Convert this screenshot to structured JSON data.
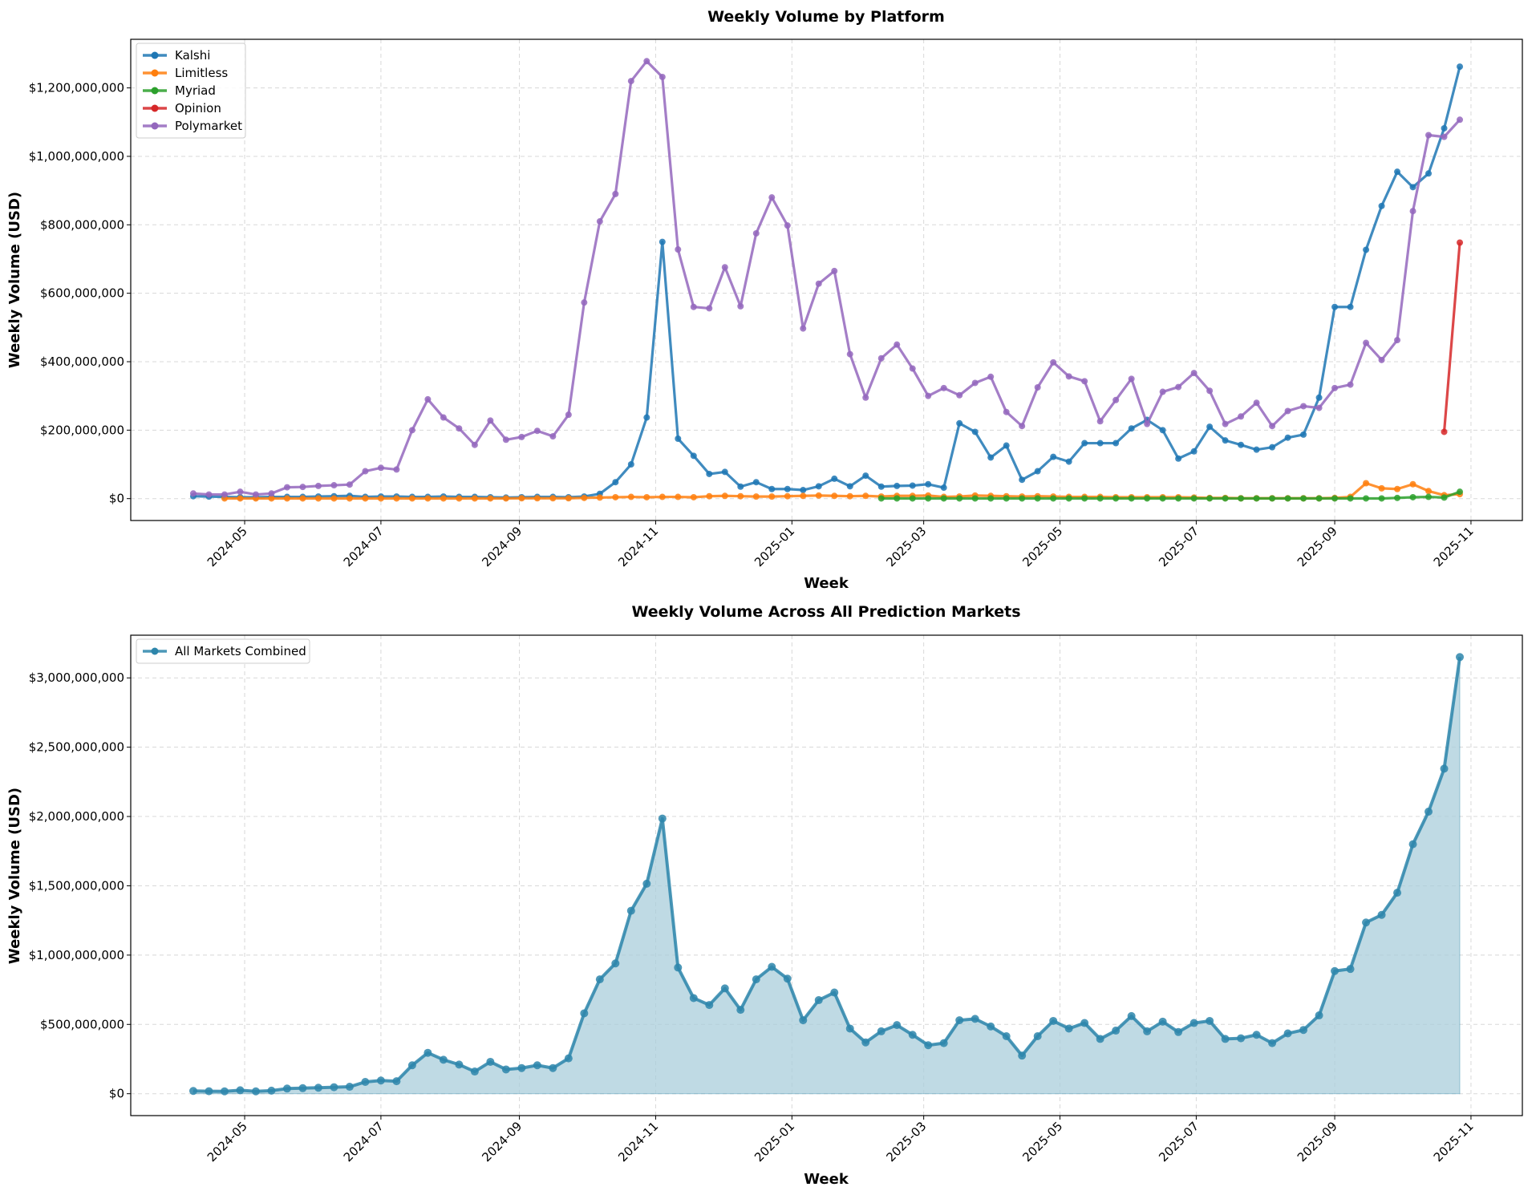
{
  "chart_data": [
    {
      "type": "line",
      "title": "Weekly Volume by Platform",
      "xlabel": "Week",
      "ylabel": "Weekly Volume (USD)",
      "xlim": [
        "2024-03-11",
        "2025-11-24"
      ],
      "ylim": [
        -64000000,
        1342000000
      ],
      "yticks": [
        0,
        200000000,
        400000000,
        600000000,
        800000000,
        1000000000,
        1200000000
      ],
      "ytick_labels": [
        "$0",
        "$200,000,000",
        "$400,000,000",
        "$600,000,000",
        "$800,000,000",
        "$1,000,000,000",
        "$1,200,000,000"
      ],
      "xticks": [
        "2024-05-01",
        "2024-07-01",
        "2024-09-01",
        "2024-11-01",
        "2025-01-01",
        "2025-03-01",
        "2025-05-01",
        "2025-07-01",
        "2025-09-01",
        "2025-11-01"
      ],
      "xtick_labels": [
        "2024-05",
        "2024-07",
        "2024-09",
        "2024-11",
        "2025-01",
        "2025-03",
        "2025-05",
        "2025-07",
        "2025-09",
        "2025-11"
      ],
      "grid": true,
      "legend": "top-left",
      "unit_scale": 1000000,
      "series": [
        {
          "name": "Kalshi",
          "color": "#1f77b4",
          "values": [
            7,
            6,
            5,
            4,
            4,
            5,
            5,
            5,
            6,
            7,
            8,
            5,
            6,
            6,
            5,
            5,
            6,
            5,
            5,
            4,
            3,
            4,
            5,
            5,
            4,
            6,
            14,
            48,
            100,
            237,
            750,
            175,
            125,
            72,
            78,
            35,
            48,
            28,
            28,
            25,
            36,
            58,
            36,
            67,
            35,
            37,
            38,
            42,
            32,
            220,
            195,
            120,
            155,
            55,
            80,
            122,
            108,
            162,
            162,
            162,
            205,
            230,
            200,
            117,
            138,
            210,
            170,
            157,
            143,
            150,
            178,
            187,
            295,
            560,
            560,
            727,
            855,
            955,
            910,
            950,
            1082,
            1262
          ]
        },
        {
          "name": "Limitless",
          "color": "#ff7f0e",
          "values": [
            null,
            null,
            0.5,
            0.5,
            0.5,
            0.5,
            0.5,
            0.5,
            0.5,
            0.5,
            0.5,
            0.5,
            0.5,
            0.5,
            0.5,
            0.5,
            0.5,
            0.5,
            0.5,
            0.5,
            0.5,
            1,
            1,
            1,
            1,
            2,
            3,
            4,
            5,
            4,
            5,
            5,
            4,
            7,
            8,
            7,
            6,
            6,
            7,
            8,
            9,
            8,
            7,
            8,
            6,
            8,
            8,
            9,
            5,
            6,
            9,
            8,
            7,
            6,
            7,
            6,
            5,
            5,
            5,
            4,
            4,
            4,
            4,
            4,
            3,
            2,
            2,
            1,
            1,
            1,
            1,
            1,
            1,
            2,
            5,
            45,
            30,
            28,
            42,
            22,
            10,
            13
          ]
        },
        {
          "name": "Myriad",
          "color": "#2ca02c",
          "values": [
            null,
            null,
            null,
            null,
            null,
            null,
            null,
            null,
            null,
            null,
            null,
            null,
            null,
            null,
            null,
            null,
            null,
            null,
            null,
            null,
            null,
            null,
            null,
            null,
            null,
            null,
            null,
            null,
            null,
            null,
            null,
            null,
            null,
            null,
            null,
            null,
            null,
            null,
            null,
            null,
            null,
            null,
            null,
            null,
            0.5,
            0.5,
            0.5,
            0.5,
            0.5,
            0.5,
            0.5,
            0.5,
            0.5,
            0.5,
            0.5,
            0.5,
            0.5,
            0.5,
            0.5,
            0.5,
            0.5,
            0.5,
            0.5,
            0.5,
            0.5,
            0.5,
            0.5,
            0.5,
            0.5,
            0.5,
            0.5,
            0.5,
            0.5,
            0.5,
            0.5,
            0.5,
            0.5,
            2,
            4,
            5,
            3,
            20
          ]
        },
        {
          "name": "Opinion",
          "color": "#d62728",
          "values": [
            null,
            null,
            null,
            null,
            null,
            null,
            null,
            null,
            null,
            null,
            null,
            null,
            null,
            null,
            null,
            null,
            null,
            null,
            null,
            null,
            null,
            null,
            null,
            null,
            null,
            null,
            null,
            null,
            null,
            null,
            null,
            null,
            null,
            null,
            null,
            null,
            null,
            null,
            null,
            null,
            null,
            null,
            null,
            null,
            null,
            null,
            null,
            null,
            null,
            null,
            null,
            null,
            null,
            null,
            null,
            null,
            null,
            null,
            null,
            null,
            null,
            null,
            null,
            null,
            null,
            null,
            null,
            null,
            null,
            null,
            null,
            null,
            null,
            null,
            null,
            null,
            null,
            null,
            null,
            null,
            195,
            748
          ]
        },
        {
          "name": "Polymarket",
          "color": "#9467bd",
          "values": [
            15,
            12,
            12,
            20,
            12,
            15,
            33,
            34,
            37,
            39,
            41,
            80,
            90,
            85,
            200,
            290,
            237,
            205,
            157,
            228,
            172,
            180,
            198,
            182,
            245,
            573,
            810,
            890,
            1220,
            1278,
            1232,
            728,
            560,
            556,
            676,
            562,
            775,
            880,
            798,
            497,
            628,
            665,
            422,
            295,
            410,
            450,
            380,
            300,
            323,
            302,
            338,
            356,
            253,
            212,
            325,
            398,
            357,
            343,
            226,
            288,
            350,
            218,
            312,
            326,
            367,
            315,
            218,
            240,
            280,
            212,
            256,
            270,
            265,
            323,
            333,
            455,
            405,
            463,
            840,
            1062,
            1057,
            1107
          ]
        }
      ]
    },
    {
      "type": "area",
      "title": "Weekly Volume Across All Prediction Markets",
      "xlabel": "Week",
      "ylabel": "Weekly Volume (USD)",
      "xlim": [
        "2024-03-11",
        "2025-11-24"
      ],
      "ylim": [
        -158000000,
        3308000000
      ],
      "yticks": [
        0,
        500000000,
        1000000000,
        1500000000,
        2000000000,
        2500000000,
        3000000000
      ],
      "ytick_labels": [
        "$0",
        "$500,000,000",
        "$1,000,000,000",
        "$1,500,000,000",
        "$2,000,000,000",
        "$2,500,000,000",
        "$3,000,000,000"
      ],
      "xticks": [
        "2024-05-01",
        "2024-07-01",
        "2024-09-01",
        "2024-11-01",
        "2025-01-01",
        "2025-03-01",
        "2025-05-01",
        "2025-07-01",
        "2025-09-01",
        "2025-11-01"
      ],
      "xtick_labels": [
        "2024-05",
        "2024-07",
        "2024-09",
        "2024-11",
        "2025-01",
        "2025-03",
        "2025-05",
        "2025-07",
        "2025-09",
        "2025-11"
      ],
      "grid": true,
      "legend": "top-left",
      "unit_scale": 1000000,
      "series": [
        {
          "name": "All Markets Combined",
          "color": "#2e86ab",
          "fill": "#a9cddb",
          "values": [
            20,
            18,
            17,
            25,
            17,
            22,
            37,
            40,
            43,
            47,
            50,
            85,
            95,
            90,
            205,
            295,
            245,
            210,
            160,
            230,
            175,
            185,
            205,
            185,
            255,
            580,
            825,
            940,
            1320,
            1515,
            1985,
            910,
            690,
            640,
            760,
            605,
            825,
            915,
            830,
            530,
            675,
            730,
            470,
            370,
            450,
            495,
            425,
            350,
            365,
            530,
            540,
            485,
            415,
            275,
            415,
            525,
            470,
            510,
            395,
            455,
            560,
            450,
            520,
            445,
            510,
            525,
            395,
            400,
            425,
            365,
            435,
            460,
            565,
            885,
            900,
            1235,
            1290,
            1450,
            1800,
            2035,
            2345,
            3150
          ]
        }
      ]
    }
  ],
  "weeks_start": "2024-04-08"
}
